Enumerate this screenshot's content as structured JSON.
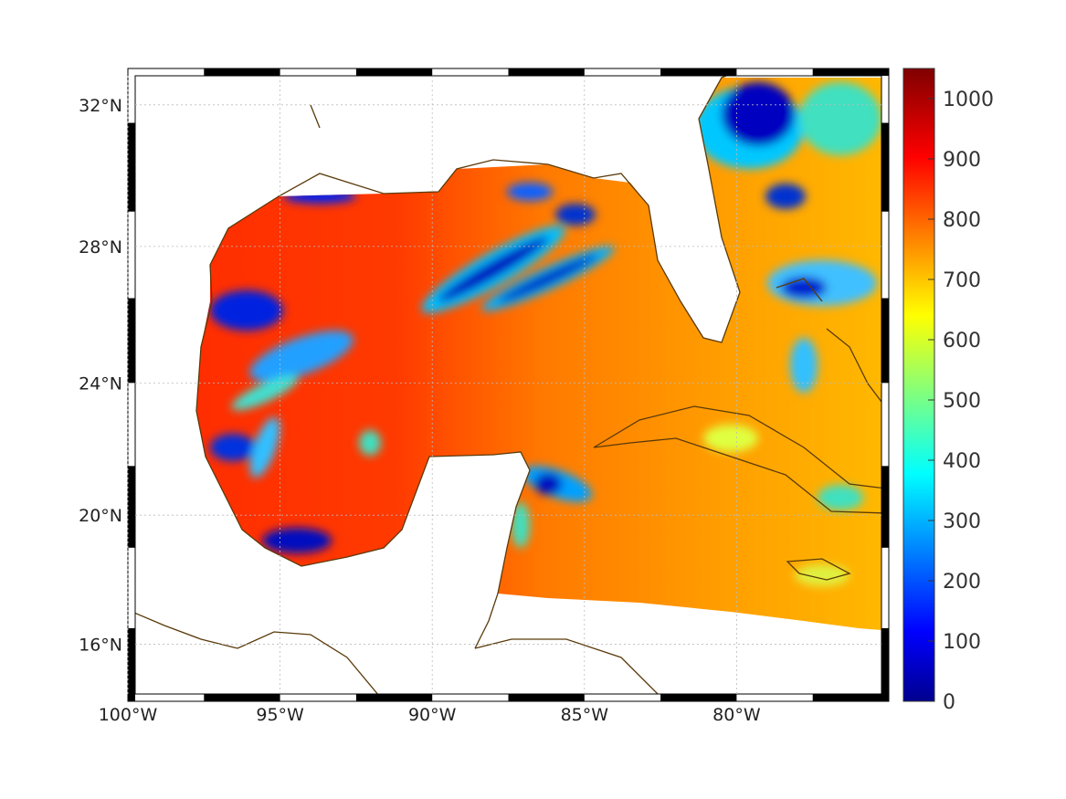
{
  "map": {
    "lon_labels": [
      "100°W",
      "95°W",
      "90°W",
      "85°W",
      "80°W"
    ],
    "lat_labels": [
      "32°N",
      "28°N",
      "24°N",
      "20°N",
      "16°N"
    ],
    "lon_values": [
      -100,
      -95,
      -90,
      -85,
      -80
    ],
    "lat_values": [
      32,
      28,
      24,
      20,
      16
    ],
    "extent": {
      "lon": [
        -100,
        -75
      ],
      "lat": [
        14.2,
        33
      ]
    },
    "coast_color": "#5a3a0a"
  },
  "colorbar": {
    "colormap": "jet",
    "range": [
      0,
      1050
    ],
    "labels": [
      "0",
      "100",
      "200",
      "300",
      "400",
      "500",
      "600",
      "700",
      "800",
      "900",
      "1000"
    ]
  }
}
